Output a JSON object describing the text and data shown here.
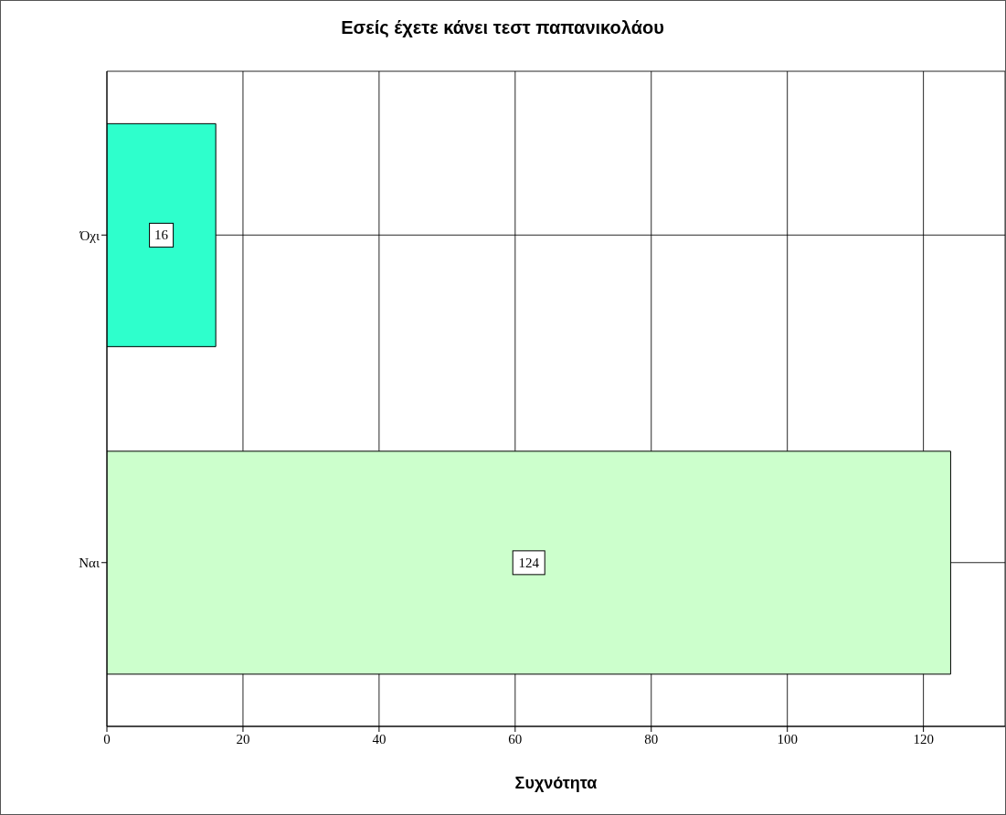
{
  "chart_data": {
    "type": "bar",
    "orientation": "horizontal",
    "title": "Εσείς έχετε κάνει τεστ παπανικολάου",
    "xlabel": "Συχνότητα",
    "categories": [
      "Όχι",
      "Ναι"
    ],
    "values": [
      16,
      124
    ],
    "colors": [
      "#2effcc",
      "#ccffcc"
    ],
    "xlim": [
      0,
      132
    ],
    "xticks": [
      0,
      20,
      40,
      60,
      80,
      100,
      120
    ],
    "grid": true,
    "data_labels": true
  }
}
